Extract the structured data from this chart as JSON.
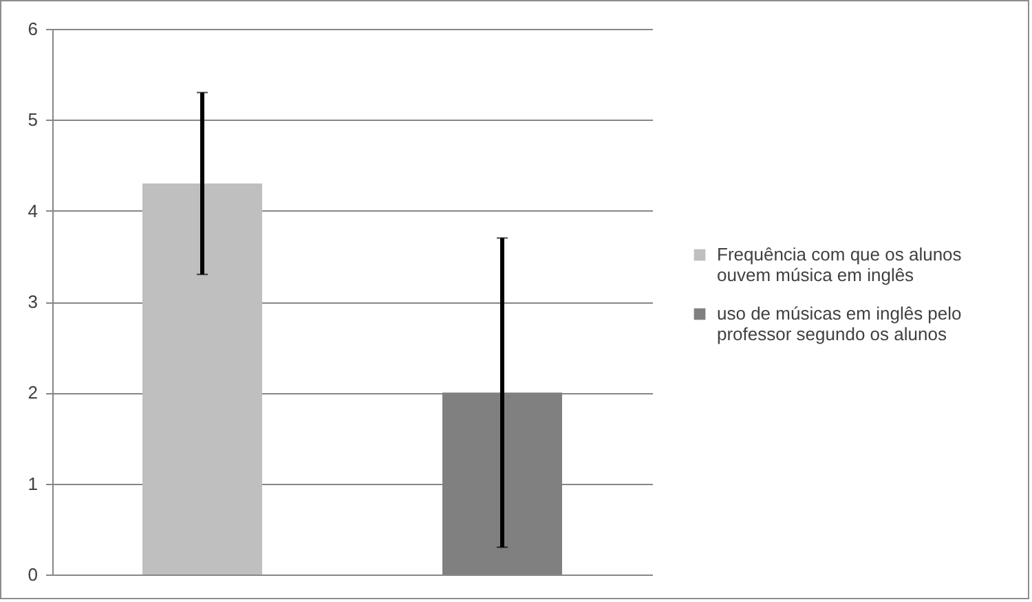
{
  "chart_data": {
    "type": "bar",
    "categories": [
      null,
      null
    ],
    "series": [
      {
        "name": "Frequência com que os alunos ouvem música em inglês",
        "color": "#bfbfbf",
        "values": [
          4.3,
          null
        ],
        "errors": [
          1,
          null
        ]
      },
      {
        "name": "uso de músicas em inglês pelo professor segundo os alunos",
        "color": "#808080",
        "values": [
          null,
          2.0
        ],
        "errors": [
          null,
          1.7
        ]
      }
    ],
    "ylim": [
      0,
      6
    ],
    "yticks": [
      0,
      1,
      2,
      3,
      4,
      5,
      6
    ],
    "grid": "y",
    "legend": "right"
  }
}
